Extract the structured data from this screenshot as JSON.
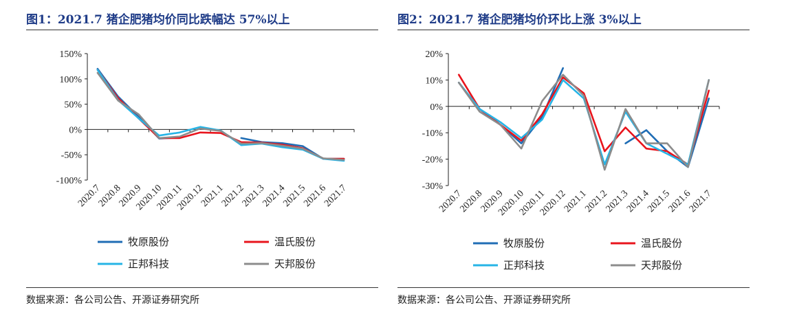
{
  "colors": {
    "title": "#1f3c88",
    "series": [
      "#1f6db5",
      "#e8141c",
      "#26b4e6",
      "#8c8c8c"
    ]
  },
  "panels": [
    {
      "title": "图1：2021.7 猪企肥猪均价同比跌幅达 57%以上",
      "source": "数据来源：各公司公告、开源证券研究所"
    },
    {
      "title": "图2：2021.7 猪企肥猪均价环比上涨 3%以上",
      "source": "数据来源：各公司公告、开源证券研究所"
    }
  ],
  "chart_data": [
    {
      "type": "line",
      "categories": [
        "2020.7",
        "2020.8",
        "2020.9",
        "2020.10",
        "2020.11",
        "2020.12",
        "2021.1",
        "2021.2",
        "2021.3",
        "2021.4",
        "2021.5",
        "2021.6",
        "2021.7"
      ],
      "ylim": [
        -100,
        150
      ],
      "yticks": [
        "150%",
        "100%",
        "50%",
        "0%",
        "-50%",
        "-100%"
      ],
      "ytick_values": [
        150,
        100,
        50,
        0,
        -50,
        -100
      ],
      "series": [
        {
          "name": "牧原股份",
          "values": [
            120,
            65,
            25,
            -18,
            -16,
            null,
            null,
            -17,
            -25,
            -27,
            -33,
            -58,
            -58
          ]
        },
        {
          "name": "温氏股份",
          "values": [
            118,
            62,
            22,
            -17,
            -17,
            -6,
            -7,
            -25,
            -26,
            -30,
            -37,
            -58,
            -58
          ]
        },
        {
          "name": "正邦科技",
          "values": [
            118,
            58,
            22,
            -12,
            -6,
            5,
            -2,
            -31,
            -28,
            -35,
            -40,
            -58,
            -62
          ]
        },
        {
          "name": "天邦股份",
          "values": [
            112,
            57,
            30,
            -17,
            -14,
            2,
            -3,
            -28,
            -27,
            -32,
            -38,
            -57,
            -60
          ]
        }
      ]
    },
    {
      "type": "line",
      "categories": [
        "2020.7",
        "2020.8",
        "2020.9",
        "2020.10",
        "2020.11",
        "2020.12",
        "2021.1",
        "2021.2",
        "2021.3",
        "2021.4",
        "2021.5",
        "2021.6",
        "2021.7"
      ],
      "ylim": [
        -30,
        20
      ],
      "yticks": [
        "20%",
        "10%",
        "0%",
        "-10%",
        "-20%",
        "-30%"
      ],
      "ytick_values": [
        20,
        10,
        0,
        -10,
        -20,
        -30
      ],
      "series": [
        {
          "name": "牧原股份",
          "values": [
            9,
            -1,
            -7,
            -14,
            -4,
            14.5,
            null,
            null,
            -14,
            -9,
            -17,
            -23,
            3
          ]
        },
        {
          "name": "温氏股份",
          "values": [
            12,
            -1,
            -7,
            -13,
            -3,
            11,
            5,
            -17,
            -8,
            -16,
            -17,
            -22,
            6
          ]
        },
        {
          "name": "正邦科技",
          "values": [
            9,
            -1,
            -6,
            -12,
            -5,
            10,
            3,
            -22,
            -2,
            -14,
            -18,
            -22,
            10
          ]
        },
        {
          "name": "天邦股份",
          "values": [
            9,
            -2,
            -7,
            -16,
            2,
            12,
            4,
            -24,
            -1,
            -14,
            -14,
            -23,
            10
          ]
        }
      ]
    }
  ]
}
